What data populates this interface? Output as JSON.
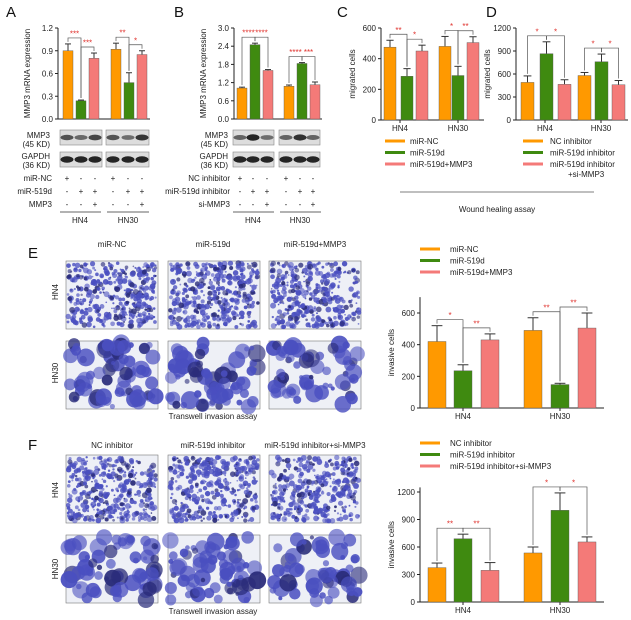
{
  "colors": {
    "orange": "#ff9900",
    "green": "#3f8a10",
    "pink": "#f47a78",
    "star": "#e0322d",
    "stain": "#4a4fc0"
  },
  "panels": {
    "A": "A",
    "B": "B",
    "C": "C",
    "D": "D",
    "E": "E",
    "F": "F"
  },
  "blots": {
    "mmp3": "MMP3",
    "mmp3_kd": "(45 KD)",
    "gapdh": "GAPDH",
    "gapdh_kd": "(36 KD)",
    "A_rows": [
      {
        "label": "miR-NC",
        "signs": [
          "+",
          "-",
          "-",
          "+",
          "-",
          "-"
        ]
      },
      {
        "label": "miR-519d",
        "signs": [
          "-",
          "+",
          "+",
          "-",
          "+",
          "+"
        ]
      },
      {
        "label": "MMP3",
        "signs": [
          "-",
          "-",
          "+",
          "-",
          "-",
          "+"
        ]
      }
    ],
    "B_rows": [
      {
        "label": "NC inhibitor",
        "signs": [
          "+",
          "-",
          "-",
          "+",
          "-",
          "-"
        ]
      },
      {
        "label": "miR-519d inhibitor",
        "signs": [
          "-",
          "+",
          "+",
          "-",
          "+",
          "+"
        ]
      },
      {
        "label": "si-MMP3",
        "signs": [
          "-",
          "-",
          "+",
          "-",
          "-",
          "+"
        ]
      }
    ],
    "groups": [
      "HN4",
      "HN30"
    ]
  },
  "wound_caption": "Wound healing assay",
  "E_images": {
    "columns": [
      "miR-NC",
      "miR-519d",
      "miR-519d+MMP3"
    ],
    "rows": [
      "HN4",
      "HN30"
    ],
    "caption": "Transwell invasion assay"
  },
  "F_images": {
    "columns": [
      "NC inhibitor",
      "miR-519d inhibitor",
      "miR-519d inhibitor+si-MMP3"
    ],
    "rows": [
      "HN4",
      "HN30"
    ],
    "caption": "Transwell invasion assay"
  },
  "chart_data": [
    {
      "id": "A",
      "type": "bar",
      "ylabel": "MMP3 mRNA expression",
      "ylim": [
        0,
        1.2
      ],
      "ticks": [
        "0.0",
        "0.3",
        "0.6",
        "0.9",
        "1.2"
      ],
      "categories": [
        "HN4",
        "HN30"
      ],
      "show_categories": false,
      "series": [
        {
          "values": [
            0.9,
            0.92
          ],
          "errors": [
            0.09,
            0.08
          ]
        },
        {
          "values": [
            0.24,
            0.48
          ],
          "errors": [
            0.01,
            0.13
          ]
        },
        {
          "values": [
            0.8,
            0.85
          ],
          "errors": [
            0.07,
            0.05
          ]
        }
      ],
      "significance": [
        [
          "***",
          "***"
        ],
        [
          "**",
          "*"
        ]
      ]
    },
    {
      "id": "B",
      "type": "bar",
      "ylabel": "MMP3 mRNA expression",
      "ylim": [
        0,
        3.0
      ],
      "ticks": [
        "0.0",
        "0.6",
        "1.2",
        "1.8",
        "2.4",
        "3.0"
      ],
      "categories": [
        "HN4",
        "HN30"
      ],
      "show_categories": false,
      "series": [
        {
          "values": [
            1.02,
            1.08
          ],
          "errors": [
            0.03,
            0.04
          ]
        },
        {
          "values": [
            2.45,
            1.83
          ],
          "errors": [
            0.05,
            0.03
          ]
        },
        {
          "values": [
            1.6,
            1.13
          ],
          "errors": [
            0.03,
            0.09
          ]
        }
      ],
      "significance": [
        [
          "****",
          "****"
        ],
        [
          "****",
          "***"
        ]
      ]
    },
    {
      "id": "C",
      "type": "bar",
      "ylabel": "migrated cells",
      "ylim": [
        0,
        600
      ],
      "ticks": [
        "0",
        "200",
        "400",
        "600"
      ],
      "categories": [
        "HN4",
        "HN30"
      ],
      "show_categories": true,
      "series": [
        {
          "name": "miR-NC",
          "values": [
            475,
            480
          ],
          "errors": [
            45,
            65
          ]
        },
        {
          "name": "miR-519d",
          "values": [
            285,
            290
          ],
          "errors": [
            50,
            60
          ]
        },
        {
          "name": "miR-519d+MMP3",
          "values": [
            450,
            505
          ],
          "errors": [
            38,
            38
          ]
        }
      ],
      "significance": [
        [
          "**",
          "*"
        ],
        [
          "*",
          "**"
        ]
      ],
      "legend": "bottom"
    },
    {
      "id": "D",
      "type": "bar",
      "ylabel": "migrated cells",
      "ylim": [
        0,
        1200
      ],
      "ticks": [
        "0",
        "300",
        "600",
        "900",
        "1200"
      ],
      "categories": [
        "HN4",
        "HN30"
      ],
      "show_categories": true,
      "series": [
        {
          "name": "NC inhibitor",
          "values": [
            490,
            580
          ],
          "errors": [
            85,
            40
          ]
        },
        {
          "name": "miR-519d inhibitor",
          "values": [
            865,
            760
          ],
          "errors": [
            155,
            100
          ]
        },
        {
          "name": "miR-519d inhibitor +si-MMP3",
          "values": [
            465,
            460
          ],
          "errors": [
            60,
            55
          ]
        }
      ],
      "significance": [
        [
          "*",
          "*"
        ],
        [
          "*",
          "*"
        ]
      ],
      "legend": "bottom"
    },
    {
      "id": "E",
      "type": "bar",
      "ylabel": "invasive cells",
      "ylim": [
        0,
        700
      ],
      "ticks": [
        "0",
        "200",
        "400",
        "600"
      ],
      "categories": [
        "HN4",
        "HN30"
      ],
      "show_categories": true,
      "series": [
        {
          "name": "miR-NC",
          "values": [
            420,
            490
          ],
          "errors": [
            100,
            80
          ]
        },
        {
          "name": "miR-519d",
          "values": [
            235,
            148
          ],
          "errors": [
            38,
            8
          ]
        },
        {
          "name": "miR-519d+MMP3",
          "values": [
            430,
            505
          ],
          "errors": [
            38,
            95
          ]
        }
      ],
      "significance": [
        [
          "*",
          "**"
        ],
        [
          "**",
          "**"
        ]
      ],
      "legend": "top"
    },
    {
      "id": "F",
      "type": "bar",
      "ylabel": "invasive cells",
      "ylim": [
        0,
        1250
      ],
      "ticks": [
        "0",
        "300",
        "600",
        "900",
        "1200"
      ],
      "categories": [
        "HN4",
        "HN30"
      ],
      "show_categories": true,
      "series": [
        {
          "name": "NC inhibitor",
          "values": [
            375,
            535
          ],
          "errors": [
            50,
            65
          ]
        },
        {
          "name": "miR-519d inhibitor",
          "values": [
            690,
            1000
          ],
          "errors": [
            50,
            190
          ]
        },
        {
          "name": "miR-519d inhibitor+si-MMP3",
          "values": [
            345,
            655
          ],
          "errors": [
            85,
            55
          ]
        }
      ],
      "significance": [
        [
          "**",
          "**"
        ],
        [
          "*",
          "*"
        ]
      ],
      "legend": "top"
    }
  ]
}
